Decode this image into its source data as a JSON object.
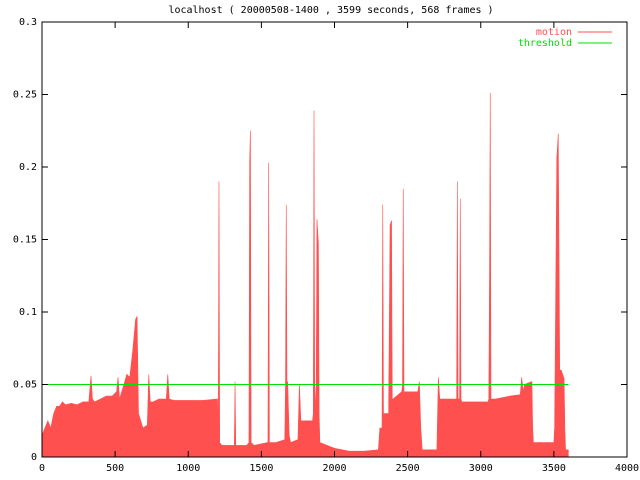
{
  "chart_data": {
    "type": "area",
    "title": "localhost ( 20000508-1400 , 3599 seconds, 568 frames )",
    "legend": "top-right",
    "xlim": [
      0,
      4000
    ],
    "xticks": [
      0,
      500,
      1000,
      1500,
      2000,
      2500,
      3000,
      3500,
      4000
    ],
    "ylim": [
      0,
      0.3
    ],
    "yticks": [
      0,
      0.05,
      0.1,
      0.15,
      0.2,
      0.25,
      0.3
    ],
    "series": [
      {
        "name": "motion",
        "color": "#ff5050",
        "x": [
          0,
          20,
          40,
          60,
          80,
          100,
          120,
          140,
          160,
          200,
          240,
          280,
          320,
          335,
          345,
          360,
          400,
          440,
          480,
          510,
          520,
          530,
          560,
          580,
          600,
          620,
          640,
          650,
          660,
          690,
          720,
          730,
          740,
          760,
          800,
          850,
          860,
          870,
          900,
          1000,
          1100,
          1200,
          1205,
          1210,
          1215,
          1230,
          1300,
          1315,
          1320,
          1325,
          1400,
          1415,
          1420,
          1425,
          1430,
          1450,
          1540,
          1545,
          1550,
          1555,
          1600,
          1660,
          1665,
          1670,
          1675,
          1680,
          1690,
          1700,
          1750,
          1760,
          1770,
          1800,
          1850,
          1855,
          1860,
          1865,
          1875,
          1880,
          1890,
          1895,
          1900,
          1950,
          2000,
          2100,
          2200,
          2300,
          2310,
          2325,
          2330,
          2335,
          2340,
          2370,
          2380,
          2390,
          2395,
          2400,
          2460,
          2465,
          2470,
          2475,
          2480,
          2570,
          2580,
          2590,
          2600,
          2700,
          2710,
          2720,
          2830,
          2835,
          2840,
          2845,
          2855,
          2860,
          2865,
          2870,
          3000,
          3050,
          3055,
          3060,
          3065,
          3070,
          3075,
          3100,
          3200,
          3270,
          3280,
          3290,
          3300,
          3350,
          3355,
          3360,
          3400,
          3500,
          3505,
          3510,
          3520,
          3530,
          3540,
          3550,
          3570,
          3575,
          3580,
          3599
        ],
        "values": [
          0.015,
          0.02,
          0.025,
          0.02,
          0.03,
          0.035,
          0.035,
          0.038,
          0.036,
          0.037,
          0.036,
          0.038,
          0.038,
          0.056,
          0.04,
          0.038,
          0.04,
          0.042,
          0.042,
          0.045,
          0.055,
          0.04,
          0.05,
          0.057,
          0.055,
          0.073,
          0.095,
          0.097,
          0.03,
          0.02,
          0.022,
          0.057,
          0.038,
          0.038,
          0.04,
          0.04,
          0.057,
          0.04,
          0.039,
          0.039,
          0.039,
          0.04,
          0.01,
          0.19,
          0.01,
          0.008,
          0.008,
          0.008,
          0.052,
          0.008,
          0.008,
          0.01,
          0.204,
          0.225,
          0.01,
          0.008,
          0.01,
          0.01,
          0.203,
          0.01,
          0.01,
          0.012,
          0.05,
          0.174,
          0.05,
          0.052,
          0.015,
          0.01,
          0.012,
          0.05,
          0.025,
          0.025,
          0.025,
          0.03,
          0.239,
          0.03,
          0.05,
          0.164,
          0.147,
          0.03,
          0.01,
          0.008,
          0.006,
          0.004,
          0.004,
          0.005,
          0.02,
          0.02,
          0.174,
          0.03,
          0.03,
          0.03,
          0.16,
          0.163,
          0.04,
          0.04,
          0.045,
          0.05,
          0.185,
          0.045,
          0.045,
          0.045,
          0.052,
          0.02,
          0.005,
          0.005,
          0.055,
          0.04,
          0.04,
          0.04,
          0.19,
          0.04,
          0.04,
          0.178,
          0.04,
          0.038,
          0.038,
          0.038,
          0.04,
          0.124,
          0.251,
          0.04,
          0.04,
          0.04,
          0.042,
          0.043,
          0.055,
          0.045,
          0.05,
          0.052,
          0.02,
          0.01,
          0.01,
          0.01,
          0.02,
          0.08,
          0.206,
          0.223,
          0.06,
          0.06,
          0.054,
          0.02,
          0.005,
          0.005
        ]
      },
      {
        "name": "threshold",
        "color": "#00e000",
        "x": [
          0,
          3599
        ],
        "values": [
          0.05,
          0.05
        ]
      }
    ]
  }
}
